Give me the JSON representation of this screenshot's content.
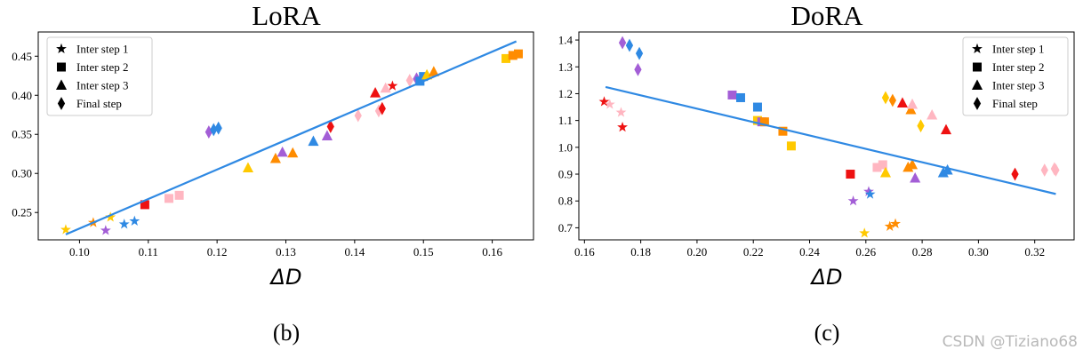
{
  "colors": {
    "line": "#2f89e3",
    "palette": {
      "gold": "#ffc900",
      "orange": "#ff8c00",
      "blue": "#2f89e3",
      "purple": "#a35ed6",
      "pink": "#ffb6c1",
      "red": "#ee1111"
    }
  },
  "watermark": "CSDN @Tiziano68",
  "chart_data": [
    {
      "type": "scatter",
      "title": "LoRA",
      "xlabel": "ΔD",
      "ylabel": "",
      "caption": "(b)",
      "xlim": [
        0.094,
        0.166
      ],
      "ylim": [
        0.215,
        0.481
      ],
      "xticks": [
        0.1,
        0.11,
        0.12,
        0.13,
        0.14,
        0.15,
        0.16
      ],
      "xtick_labels": [
        "0.10",
        "0.11",
        "0.12",
        "0.13",
        "0.14",
        "0.15",
        "0.16"
      ],
      "yticks": [
        0.25,
        0.3,
        0.35,
        0.4,
        0.45
      ],
      "ytick_labels": [
        "0.25",
        "0.30",
        "0.35",
        "0.40",
        "0.45"
      ],
      "legend_position": "top-left",
      "legend": [
        {
          "marker": "star",
          "label": "Inter step 1"
        },
        {
          "marker": "square",
          "label": "Inter step 2"
        },
        {
          "marker": "triangle",
          "label": "Inter step 3"
        },
        {
          "marker": "diamond",
          "label": "Final step"
        }
      ],
      "trend_line": {
        "x": [
          0.098,
          0.1635
        ],
        "y": [
          0.222,
          0.469
        ]
      },
      "points": [
        {
          "x": 0.098,
          "y": 0.228,
          "marker": "star",
          "color": "gold"
        },
        {
          "x": 0.102,
          "y": 0.237,
          "marker": "star",
          "color": "orange"
        },
        {
          "x": 0.1038,
          "y": 0.227,
          "marker": "star",
          "color": "purple"
        },
        {
          "x": 0.1045,
          "y": 0.244,
          "marker": "star",
          "color": "gold"
        },
        {
          "x": 0.1065,
          "y": 0.235,
          "marker": "star",
          "color": "blue"
        },
        {
          "x": 0.108,
          "y": 0.239,
          "marker": "star",
          "color": "blue"
        },
        {
          "x": 0.1095,
          "y": 0.26,
          "marker": "square",
          "color": "red"
        },
        {
          "x": 0.113,
          "y": 0.268,
          "marker": "square",
          "color": "pink"
        },
        {
          "x": 0.1145,
          "y": 0.272,
          "marker": "square",
          "color": "pink"
        },
        {
          "x": 0.1188,
          "y": 0.353,
          "marker": "diamond",
          "color": "purple"
        },
        {
          "x": 0.1195,
          "y": 0.356,
          "marker": "diamond",
          "color": "blue"
        },
        {
          "x": 0.1202,
          "y": 0.358,
          "marker": "diamond",
          "color": "blue"
        },
        {
          "x": 0.1245,
          "y": 0.307,
          "marker": "triangle",
          "color": "gold"
        },
        {
          "x": 0.1285,
          "y": 0.319,
          "marker": "triangle",
          "color": "orange"
        },
        {
          "x": 0.1295,
          "y": 0.327,
          "marker": "triangle",
          "color": "purple"
        },
        {
          "x": 0.131,
          "y": 0.326,
          "marker": "triangle",
          "color": "orange"
        },
        {
          "x": 0.134,
          "y": 0.341,
          "marker": "triangle",
          "color": "blue"
        },
        {
          "x": 0.136,
          "y": 0.348,
          "marker": "triangle",
          "color": "purple"
        },
        {
          "x": 0.1365,
          "y": 0.36,
          "marker": "diamond",
          "color": "red"
        },
        {
          "x": 0.1405,
          "y": 0.374,
          "marker": "diamond",
          "color": "pink"
        },
        {
          "x": 0.1435,
          "y": 0.38,
          "marker": "diamond",
          "color": "pink"
        },
        {
          "x": 0.144,
          "y": 0.383,
          "marker": "diamond",
          "color": "red"
        },
        {
          "x": 0.143,
          "y": 0.403,
          "marker": "triangle",
          "color": "red"
        },
        {
          "x": 0.1445,
          "y": 0.409,
          "marker": "triangle",
          "color": "pink"
        },
        {
          "x": 0.1455,
          "y": 0.412,
          "marker": "star",
          "color": "red"
        },
        {
          "x": 0.148,
          "y": 0.419,
          "marker": "diamond",
          "color": "pink"
        },
        {
          "x": 0.149,
          "y": 0.421,
          "marker": "diamond",
          "color": "purple"
        },
        {
          "x": 0.1495,
          "y": 0.418,
          "marker": "square",
          "color": "blue"
        },
        {
          "x": 0.15,
          "y": 0.424,
          "marker": "square",
          "color": "blue"
        },
        {
          "x": 0.1505,
          "y": 0.426,
          "marker": "triangle",
          "color": "gold"
        },
        {
          "x": 0.1515,
          "y": 0.43,
          "marker": "triangle",
          "color": "orange"
        },
        {
          "x": 0.162,
          "y": 0.447,
          "marker": "square",
          "color": "gold"
        },
        {
          "x": 0.163,
          "y": 0.451,
          "marker": "square",
          "color": "orange"
        },
        {
          "x": 0.1638,
          "y": 0.453,
          "marker": "square",
          "color": "orange"
        }
      ]
    },
    {
      "type": "scatter",
      "title": "DoRA",
      "xlabel": "ΔD",
      "ylabel": "",
      "caption": "(c)",
      "xlim": [
        0.158,
        0.334
      ],
      "ylim": [
        0.655,
        1.43
      ],
      "xticks": [
        0.16,
        0.18,
        0.2,
        0.22,
        0.24,
        0.26,
        0.28,
        0.3,
        0.32
      ],
      "xtick_labels": [
        "0.16",
        "0.18",
        "0.20",
        "0.22",
        "0.24",
        "0.26",
        "0.28",
        "0.30",
        "0.32"
      ],
      "yticks": [
        0.7,
        0.8,
        0.9,
        1.0,
        1.1,
        1.2,
        1.3,
        1.4
      ],
      "ytick_labels": [
        "0.7",
        "0.8",
        "0.9",
        "1.0",
        "1.1",
        "1.2",
        "1.3",
        "1.4"
      ],
      "legend_position": "top-right",
      "legend": [
        {
          "marker": "star",
          "label": "Inter step 1"
        },
        {
          "marker": "square",
          "label": "Inter step 2"
        },
        {
          "marker": "triangle",
          "label": "Inter step 3"
        },
        {
          "marker": "diamond",
          "label": "Final step"
        }
      ],
      "trend_line": {
        "x": [
          0.1675,
          0.3275
        ],
        "y": [
          1.225,
          0.826
        ]
      },
      "points": [
        {
          "x": 0.167,
          "y": 1.17,
          "marker": "star",
          "color": "red"
        },
        {
          "x": 0.169,
          "y": 1.16,
          "marker": "star",
          "color": "pink"
        },
        {
          "x": 0.173,
          "y": 1.13,
          "marker": "star",
          "color": "pink"
        },
        {
          "x": 0.1735,
          "y": 1.075,
          "marker": "star",
          "color": "red"
        },
        {
          "x": 0.1735,
          "y": 1.39,
          "marker": "diamond",
          "color": "purple"
        },
        {
          "x": 0.176,
          "y": 1.38,
          "marker": "diamond",
          "color": "blue"
        },
        {
          "x": 0.1795,
          "y": 1.35,
          "marker": "diamond",
          "color": "blue"
        },
        {
          "x": 0.179,
          "y": 1.29,
          "marker": "diamond",
          "color": "purple"
        },
        {
          "x": 0.2125,
          "y": 1.195,
          "marker": "square",
          "color": "purple"
        },
        {
          "x": 0.2155,
          "y": 1.185,
          "marker": "square",
          "color": "blue"
        },
        {
          "x": 0.2215,
          "y": 1.15,
          "marker": "square",
          "color": "blue"
        },
        {
          "x": 0.2215,
          "y": 1.1,
          "marker": "square",
          "color": "gold"
        },
        {
          "x": 0.223,
          "y": 1.095,
          "marker": "square",
          "color": "purple"
        },
        {
          "x": 0.224,
          "y": 1.095,
          "marker": "square",
          "color": "orange"
        },
        {
          "x": 0.2305,
          "y": 1.06,
          "marker": "square",
          "color": "orange"
        },
        {
          "x": 0.2335,
          "y": 1.005,
          "marker": "square",
          "color": "gold"
        },
        {
          "x": 0.2545,
          "y": 0.9,
          "marker": "square",
          "color": "red"
        },
        {
          "x": 0.2555,
          "y": 0.8,
          "marker": "star",
          "color": "purple"
        },
        {
          "x": 0.2595,
          "y": 0.68,
          "marker": "star",
          "color": "gold"
        },
        {
          "x": 0.261,
          "y": 0.835,
          "marker": "star",
          "color": "purple"
        },
        {
          "x": 0.2615,
          "y": 0.825,
          "marker": "star",
          "color": "blue"
        },
        {
          "x": 0.264,
          "y": 0.925,
          "marker": "square",
          "color": "pink"
        },
        {
          "x": 0.266,
          "y": 0.935,
          "marker": "square",
          "color": "pink"
        },
        {
          "x": 0.267,
          "y": 1.185,
          "marker": "diamond",
          "color": "gold"
        },
        {
          "x": 0.267,
          "y": 0.905,
          "marker": "triangle",
          "color": "gold"
        },
        {
          "x": 0.2685,
          "y": 0.705,
          "marker": "star",
          "color": "orange"
        },
        {
          "x": 0.2695,
          "y": 1.175,
          "marker": "diamond",
          "color": "orange"
        },
        {
          "x": 0.2705,
          "y": 0.715,
          "marker": "star",
          "color": "orange"
        },
        {
          "x": 0.273,
          "y": 1.165,
          "marker": "triangle",
          "color": "red"
        },
        {
          "x": 0.275,
          "y": 0.925,
          "marker": "triangle",
          "color": "orange"
        },
        {
          "x": 0.2765,
          "y": 0.935,
          "marker": "triangle",
          "color": "orange"
        },
        {
          "x": 0.276,
          "y": 1.14,
          "marker": "triangle",
          "color": "orange"
        },
        {
          "x": 0.2765,
          "y": 1.16,
          "marker": "triangle",
          "color": "pink"
        },
        {
          "x": 0.2775,
          "y": 0.885,
          "marker": "triangle",
          "color": "purple"
        },
        {
          "x": 0.2795,
          "y": 1.08,
          "marker": "diamond",
          "color": "gold"
        },
        {
          "x": 0.2835,
          "y": 1.12,
          "marker": "triangle",
          "color": "pink"
        },
        {
          "x": 0.2875,
          "y": 0.905,
          "marker": "triangle",
          "color": "blue"
        },
        {
          "x": 0.2885,
          "y": 1.065,
          "marker": "triangle",
          "color": "red"
        },
        {
          "x": 0.289,
          "y": 0.915,
          "marker": "triangle",
          "color": "blue"
        },
        {
          "x": 0.313,
          "y": 0.9,
          "marker": "diamond",
          "color": "red"
        },
        {
          "x": 0.3235,
          "y": 0.915,
          "marker": "diamond",
          "color": "pink"
        },
        {
          "x": 0.327,
          "y": 0.92,
          "marker": "diamond",
          "color": "pink"
        },
        {
          "x": 0.3275,
          "y": 0.915,
          "marker": "diamond",
          "color": "pink"
        }
      ]
    }
  ]
}
